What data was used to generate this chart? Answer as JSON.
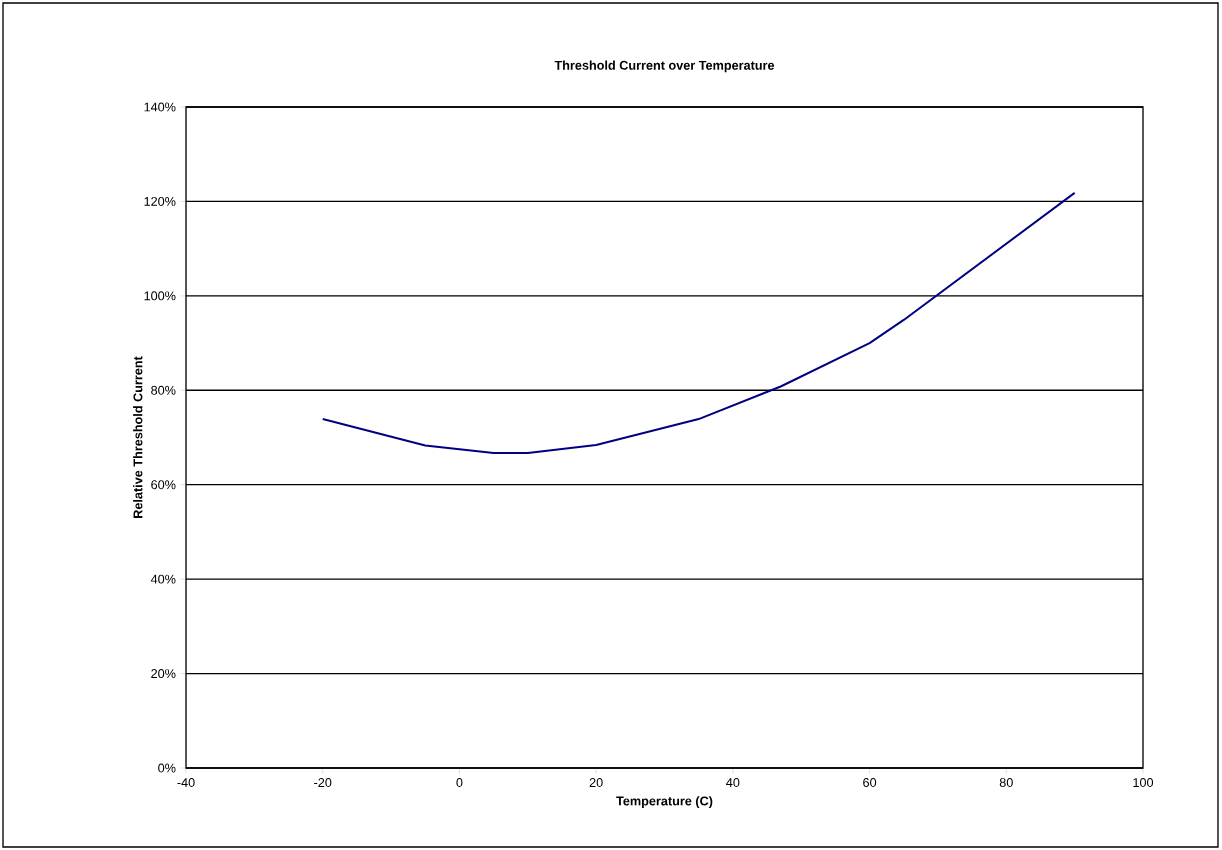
{
  "chart_data": {
    "type": "line",
    "title": "Threshold Current over Temperature",
    "xlabel": "Temperature (C)",
    "ylabel": "Relative Threshold Current",
    "series": [
      {
        "color": "#000080",
        "x": [
          -20,
          -5,
          5,
          10,
          20,
          35,
          47,
          60,
          65,
          90
        ],
        "values": [
          73.9,
          68.3,
          66.7,
          66.7,
          68.4,
          73.9,
          80.8,
          90.0,
          94.9,
          121.8
        ]
      }
    ],
    "xlim": [
      -40,
      100
    ],
    "xticks": [
      -40,
      -20,
      0,
      20,
      40,
      60,
      80,
      100
    ],
    "ylim": [
      0,
      140
    ],
    "yticks": [
      {
        "value": 0,
        "label": "0%"
      },
      {
        "value": 20,
        "label": "20%"
      },
      {
        "value": 40,
        "label": "40%"
      },
      {
        "value": 60,
        "label": "60%"
      },
      {
        "value": 80,
        "label": "80%"
      },
      {
        "value": 100,
        "label": "100%"
      },
      {
        "value": 120,
        "label": "120%"
      },
      {
        "value": 140,
        "label": "140%"
      }
    ],
    "grid": "y",
    "marker": "none",
    "line_style": "solid"
  }
}
